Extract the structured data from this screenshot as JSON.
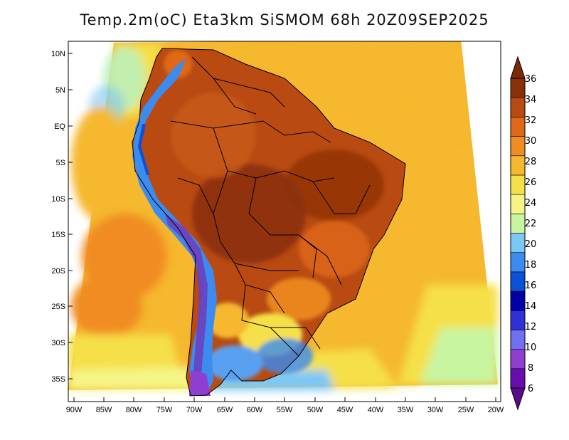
{
  "title": "Temp.2m(oC) Eta3km SiSMOM 68h 20Z09SEP2025",
  "lat_labels": [
    "10N",
    "5N",
    "EQ",
    "5S",
    "10S",
    "15S",
    "20S",
    "25S",
    "30S",
    "35S"
  ],
  "lon_labels": [
    "90W",
    "85W",
    "80W",
    "75W",
    "70W",
    "65W",
    "60W",
    "55W",
    "50W",
    "45W",
    "40W",
    "35W",
    "30W",
    "25W",
    "20W"
  ],
  "colorbar": {
    "ticks": [
      "6",
      "8",
      "10",
      "12",
      "14",
      "16",
      "18",
      "20",
      "22",
      "24",
      "26",
      "28",
      "30",
      "32",
      "34",
      "36"
    ],
    "colors": [
      "#6a0dad",
      "#8f3fd0",
      "#7070f0",
      "#3030d8",
      "#0000a8",
      "#0a50d8",
      "#3c8cf0",
      "#7cc8f5",
      "#c8f5a0",
      "#f5f586",
      "#f5e04a",
      "#f5b82e",
      "#f08c20",
      "#e06818",
      "#b84a12",
      "#8a3008"
    ]
  }
}
